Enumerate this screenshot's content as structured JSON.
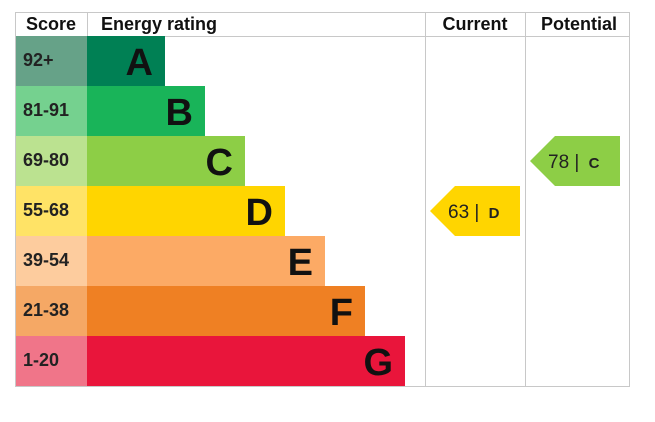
{
  "chart_data": {
    "type": "bar",
    "headers": {
      "score": "Score",
      "rating": "Energy rating",
      "current": "Current",
      "potential": "Potential"
    },
    "bands": [
      {
        "score": "92+",
        "letter": "A",
        "color": "#008054",
        "score_bg": "#66a288"
      },
      {
        "score": "81-91",
        "letter": "B",
        "color": "#19b459",
        "score_bg": "#75d18f"
      },
      {
        "score": "69-80",
        "letter": "C",
        "color": "#8dce46",
        "score_bg": "#bbe290"
      },
      {
        "score": "55-68",
        "letter": "D",
        "color": "#ffd500",
        "score_bg": "#ffe366"
      },
      {
        "score": "39-54",
        "letter": "E",
        "color": "#fcaa65",
        "score_bg": "#fdcc9e"
      },
      {
        "score": "21-38",
        "letter": "F",
        "color": "#ef8023",
        "score_bg": "#f5a865"
      },
      {
        "score": "1-20",
        "letter": "G",
        "color": "#e9153b",
        "score_bg": "#f07589"
      }
    ],
    "current": {
      "value": 63,
      "letter": "D",
      "color": "#ffd500"
    },
    "potential": {
      "value": 78,
      "letter": "C",
      "color": "#8dce46"
    }
  }
}
